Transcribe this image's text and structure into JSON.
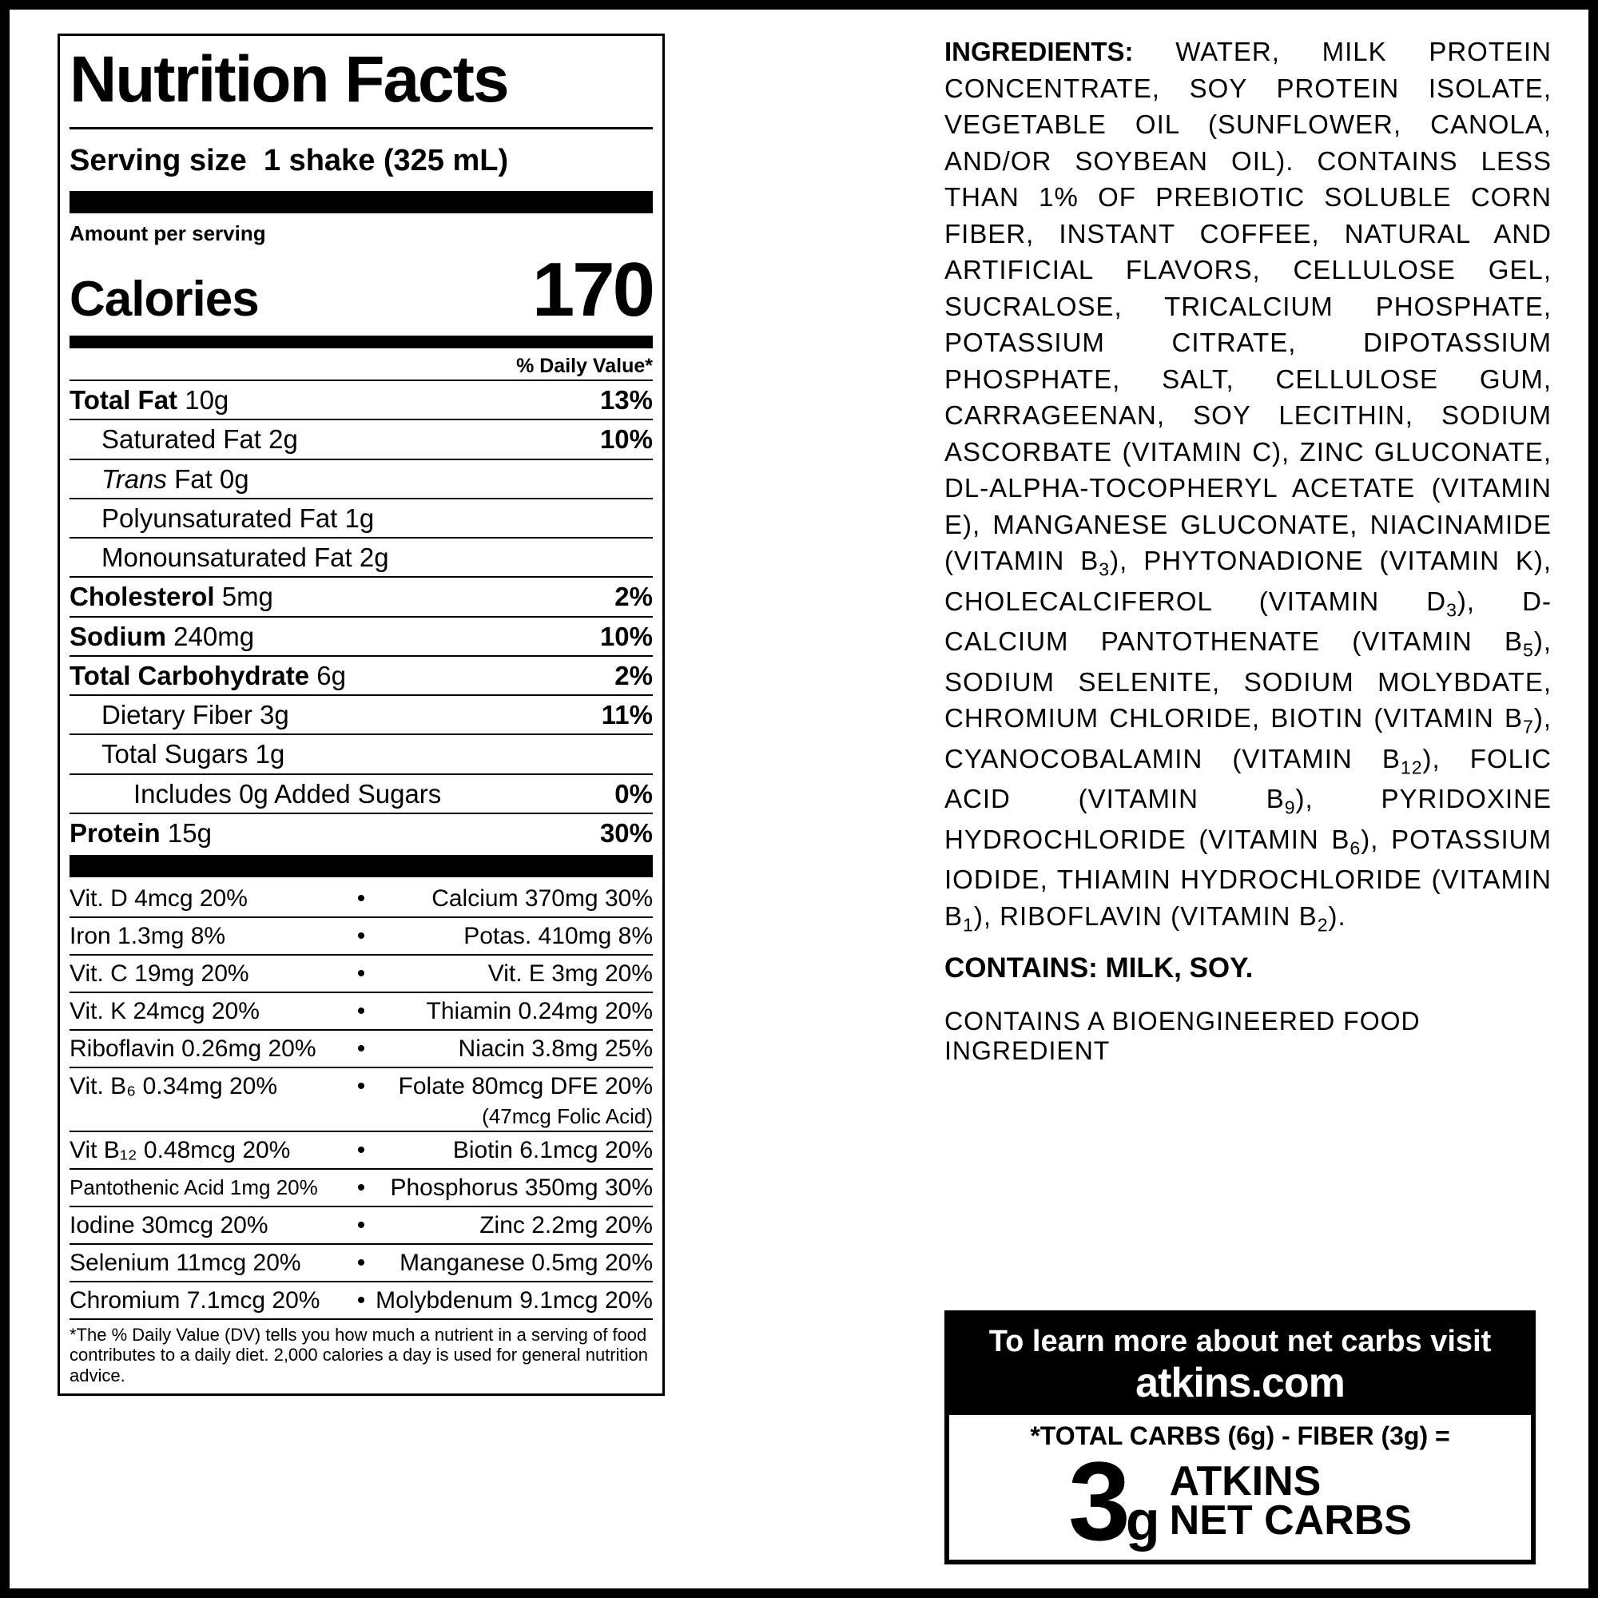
{
  "nutrition": {
    "title": "Nutrition Facts",
    "serving_size_label": "Serving size",
    "serving_size_value": "1 shake (325 mL)",
    "amount_per_serving": "Amount per serving",
    "calories_label": "Calories",
    "calories_value": "170",
    "daily_value_header": "% Daily Value*",
    "rows": {
      "total_fat": {
        "label": "Total Fat",
        "amount": "10g",
        "pct": "13%"
      },
      "sat_fat": {
        "label": "Saturated Fat",
        "amount": "2g",
        "pct": "10%"
      },
      "trans_fat": {
        "label_prefix": "Trans",
        "label_suffix": " Fat 0g"
      },
      "poly_fat": {
        "label": "Polyunsaturated Fat 1g"
      },
      "mono_fat": {
        "label": "Monounsaturated Fat 2g"
      },
      "cholesterol": {
        "label": "Cholesterol",
        "amount": "5mg",
        "pct": "2%"
      },
      "sodium": {
        "label": "Sodium",
        "amount": "240mg",
        "pct": "10%"
      },
      "total_carb": {
        "label": "Total Carbohydrate",
        "amount": "6g",
        "pct": "2%"
      },
      "fiber": {
        "label": "Dietary Fiber 3g",
        "pct": "11%"
      },
      "sugars": {
        "label": "Total Sugars 1g"
      },
      "added_sugars": {
        "label": "Includes 0g Added Sugars",
        "pct": "0%"
      },
      "protein": {
        "label": "Protein",
        "amount": "15g",
        "pct": "30%"
      }
    },
    "vitamins": [
      {
        "l": "Vit. D 4mcg 20%",
        "r": "Calcium 370mg 30%"
      },
      {
        "l": "Iron 1.3mg 8%",
        "r": "Potas. 410mg 8%"
      },
      {
        "l": "Vit. C 19mg 20%",
        "r": "Vit. E 3mg 20%"
      },
      {
        "l": "Vit. K 24mcg 20%",
        "r": "Thiamin 0.24mg 20%"
      },
      {
        "l": "Riboflavin 0.26mg 20%",
        "r": "Niacin 3.8mg 25%"
      },
      {
        "l": "Vit. B₆ 0.34mg 20%",
        "r": "Folate 80mcg DFE 20%"
      },
      {
        "l": "Vit B₁₂ 0.48mcg 20%",
        "r": "Biotin 6.1mcg 20%"
      },
      {
        "l": "Pantothenic Acid 1mg 20%",
        "r": "Phosphorus 350mg 30%"
      },
      {
        "l": "Iodine 30mcg 20%",
        "r": "Zinc 2.2mg 20%"
      },
      {
        "l": "Selenium 11mcg 20%",
        "r": "Manganese 0.5mg 20%"
      },
      {
        "l": "Chromium 7.1mcg 20%",
        "r": "Molybdenum 9.1mcg 20%"
      }
    ],
    "folic_sub": "(47mcg Folic Acid)",
    "footnote": "*The % Daily Value (DV) tells you how much a nutrient in a serving of food contributes to a daily diet. 2,000 calories a day is used for general nutrition advice."
  },
  "ingredients_label": "INGREDIENTS:",
  "ingredients_text": " WATER, MILK PROTEIN CONCENTRATE, SOY PROTEIN ISOLATE, VEGETABLE OIL (SUNFLOWER, CANOLA, AND/OR SOYBEAN OIL). CONTAINS LESS THAN 1% OF PREBIOTIC SOLUBLE CORN FIBER, INSTANT COFFEE, NATURAL AND ARTIFICIAL FLAVORS, CELLULOSE GEL, SUCRALOSE, TRICALCIUM PHOSPHATE, POTASSIUM CITRATE, DIPOTASSIUM PHOSPHATE, SALT, CELLULOSE GUM, CARRAGEENAN, SOY LECITHIN, SODIUM ASCORBATE (VITAMIN C), ZINC GLUCONATE, DL-ALPHA-TOCOPHERYL ACETATE (VITAMIN E), MANGANESE GLUCONATE, NIACINAMIDE (VITAMIN B₃), PHYTONADIONE (VITAMIN K), CHOLECALCIFEROL (VITAMIN D₃), D-CALCIUM PANTOTHENATE (VITAMIN B₅), SODIUM SELENITE, SODIUM MOLYBDATE, CHROMIUM CHLORIDE, BIOTIN (VITAMIN B₇), CYANOCOBALAMIN (VITAMIN B₁₂), FOLIC ACID (VITAMIN B₉), PYRIDOXINE HYDROCHLORIDE (VITAMIN B₆), POTASSIUM IODIDE, THIAMIN HYDROCHLORIDE (VITAMIN B₁), RIBOFLAVIN (VITAMIN B₂).",
  "contains": "CONTAINS: MILK, SOY.",
  "bioeng": "CONTAINS A BIOENGINEERED FOOD INGREDIENT",
  "netcarb": {
    "line1": "To learn more about net carbs visit",
    "line2": "atkins.com",
    "formula": "*TOTAL CARBS (6g) - FIBER (3g) =",
    "value": "3",
    "unit": "g",
    "label1": "ATKINS",
    "label2": "NET CARBS"
  },
  "style": {
    "colors": {
      "black": "#000000",
      "white": "#ffffff"
    }
  }
}
